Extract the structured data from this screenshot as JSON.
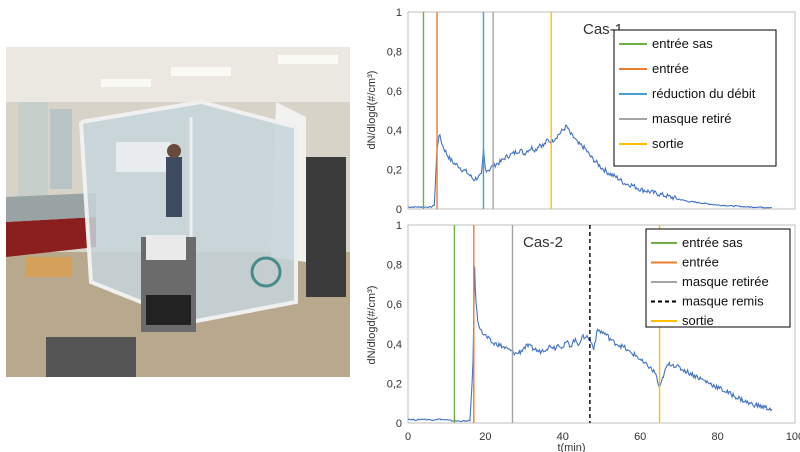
{
  "chart_data": [
    {
      "type": "line",
      "title": "Cas-1",
      "ylabel": "dN/dlogd(#/cm³)",
      "xlabel": "",
      "xlim": [
        0,
        100
      ],
      "ylim": [
        0,
        1
      ],
      "yticks": [
        "0",
        "0,2",
        "0,4",
        "0,6",
        "0,8",
        "1"
      ],
      "xticks": [],
      "grid": false,
      "legend": "top-right",
      "series": [
        {
          "color": "#4472c4",
          "x": [
            0,
            4,
            6,
            6.8,
            7.5,
            8,
            9,
            10,
            11,
            12,
            13,
            14,
            15,
            16,
            17,
            18,
            19,
            19.5,
            20,
            21,
            22,
            23,
            24,
            25,
            26,
            27,
            28,
            29,
            30,
            31,
            32,
            33,
            34,
            35,
            36,
            37,
            38,
            39,
            40,
            41,
            42,
            43,
            44,
            45,
            46,
            47,
            48,
            50,
            52,
            54,
            56,
            58,
            60,
            62,
            64,
            66,
            68,
            70,
            72,
            74,
            76,
            78,
            80,
            82,
            84,
            86,
            88,
            90,
            92,
            94
          ],
          "y": [
            0.01,
            0.01,
            0.01,
            0.02,
            0.3,
            0.38,
            0.32,
            0.28,
            0.25,
            0.23,
            0.22,
            0.2,
            0.19,
            0.17,
            0.15,
            0.16,
            0.17,
            0.3,
            0.2,
            0.2,
            0.22,
            0.23,
            0.24,
            0.26,
            0.27,
            0.28,
            0.29,
            0.3,
            0.28,
            0.3,
            0.31,
            0.3,
            0.33,
            0.32,
            0.35,
            0.34,
            0.36,
            0.38,
            0.4,
            0.42,
            0.38,
            0.36,
            0.33,
            0.32,
            0.3,
            0.27,
            0.25,
            0.21,
            0.18,
            0.16,
            0.13,
            0.12,
            0.1,
            0.09,
            0.08,
            0.07,
            0.06,
            0.05,
            0.04,
            0.035,
            0.03,
            0.025,
            0.02,
            0.018,
            0.015,
            0.013,
            0.01,
            0.01,
            0.008,
            0.008
          ]
        }
      ],
      "events": [
        {
          "label": "entrée sas",
          "x": 4,
          "color": "#70ad47",
          "dash": false
        },
        {
          "label": "entrée",
          "x": 7.5,
          "color": "#ed7d31",
          "dash": false
        },
        {
          "label": "réduction du débit",
          "x": 19.5,
          "color": "#4a9fd1",
          "dash": false
        },
        {
          "label": "masque retiré",
          "x": 22,
          "color": "#a5a5a5",
          "dash": false
        },
        {
          "label": "sortie",
          "x": 37,
          "color": "#ffc000",
          "dash": false
        }
      ]
    },
    {
      "type": "line",
      "title": "Cas-2",
      "ylabel": "dN/dlogd(#/cm³)",
      "xlabel": "t(min)",
      "xlim": [
        0,
        100
      ],
      "ylim": [
        0,
        1
      ],
      "yticks": [
        "0",
        "0,2",
        "0,4",
        "0,6",
        "0,8",
        "1"
      ],
      "xticks": [
        "0",
        "20",
        "40",
        "60",
        "80",
        "100"
      ],
      "grid": false,
      "legend": "top-right",
      "series": [
        {
          "color": "#4472c4",
          "x": [
            0,
            2,
            4,
            6,
            8,
            10,
            12,
            14,
            16,
            16.8,
            17.2,
            17.6,
            18,
            19,
            20,
            21,
            22,
            23,
            24,
            25,
            26,
            27,
            28,
            29,
            30,
            31,
            32,
            33,
            34,
            35,
            36,
            37,
            38,
            39,
            40,
            41,
            42,
            43,
            44,
            45,
            46,
            47,
            48,
            49,
            50,
            51,
            52,
            53,
            54,
            55,
            56,
            57,
            58,
            59,
            60,
            61,
            62,
            63,
            64,
            65,
            66,
            67,
            68,
            69,
            70,
            72,
            74,
            76,
            78,
            80,
            82,
            84,
            86,
            88,
            90,
            92,
            94
          ],
          "y": [
            0.02,
            0.015,
            0.02,
            0.015,
            0.02,
            0.015,
            0.01,
            0.01,
            0.01,
            0.3,
            0.78,
            0.6,
            0.52,
            0.46,
            0.44,
            0.42,
            0.4,
            0.4,
            0.39,
            0.38,
            0.37,
            0.36,
            0.35,
            0.36,
            0.38,
            0.39,
            0.38,
            0.37,
            0.36,
            0.37,
            0.38,
            0.39,
            0.38,
            0.4,
            0.38,
            0.41,
            0.39,
            0.42,
            0.4,
            0.43,
            0.44,
            0.42,
            0.38,
            0.47,
            0.46,
            0.45,
            0.43,
            0.41,
            0.4,
            0.39,
            0.38,
            0.36,
            0.35,
            0.34,
            0.32,
            0.3,
            0.29,
            0.27,
            0.25,
            0.17,
            0.24,
            0.29,
            0.3,
            0.29,
            0.28,
            0.26,
            0.24,
            0.22,
            0.2,
            0.18,
            0.16,
            0.14,
            0.12,
            0.1,
            0.09,
            0.08,
            0.07
          ]
        }
      ],
      "events": [
        {
          "label": "entrée sas",
          "x": 12,
          "color": "#70ad47",
          "dash": false
        },
        {
          "label": "entrée",
          "x": 17,
          "color": "#ed7d31",
          "dash": false
        },
        {
          "label": "masque retirée",
          "x": 27,
          "color": "#a5a5a5",
          "dash": false
        },
        {
          "label": "masque remis",
          "x": 47,
          "color": "#000000",
          "dash": true
        },
        {
          "label": "sortie",
          "x": 65,
          "color": "#ffc000",
          "dash": false
        }
      ]
    }
  ],
  "photo": {
    "icon": "lab-photo-image",
    "colors": {
      "wall": "#d9d6cc",
      "floor": "#b9aa90",
      "ceiling": "#ece9e2",
      "tent": "#c9d6dc",
      "frame": "#e8e8e8"
    }
  }
}
